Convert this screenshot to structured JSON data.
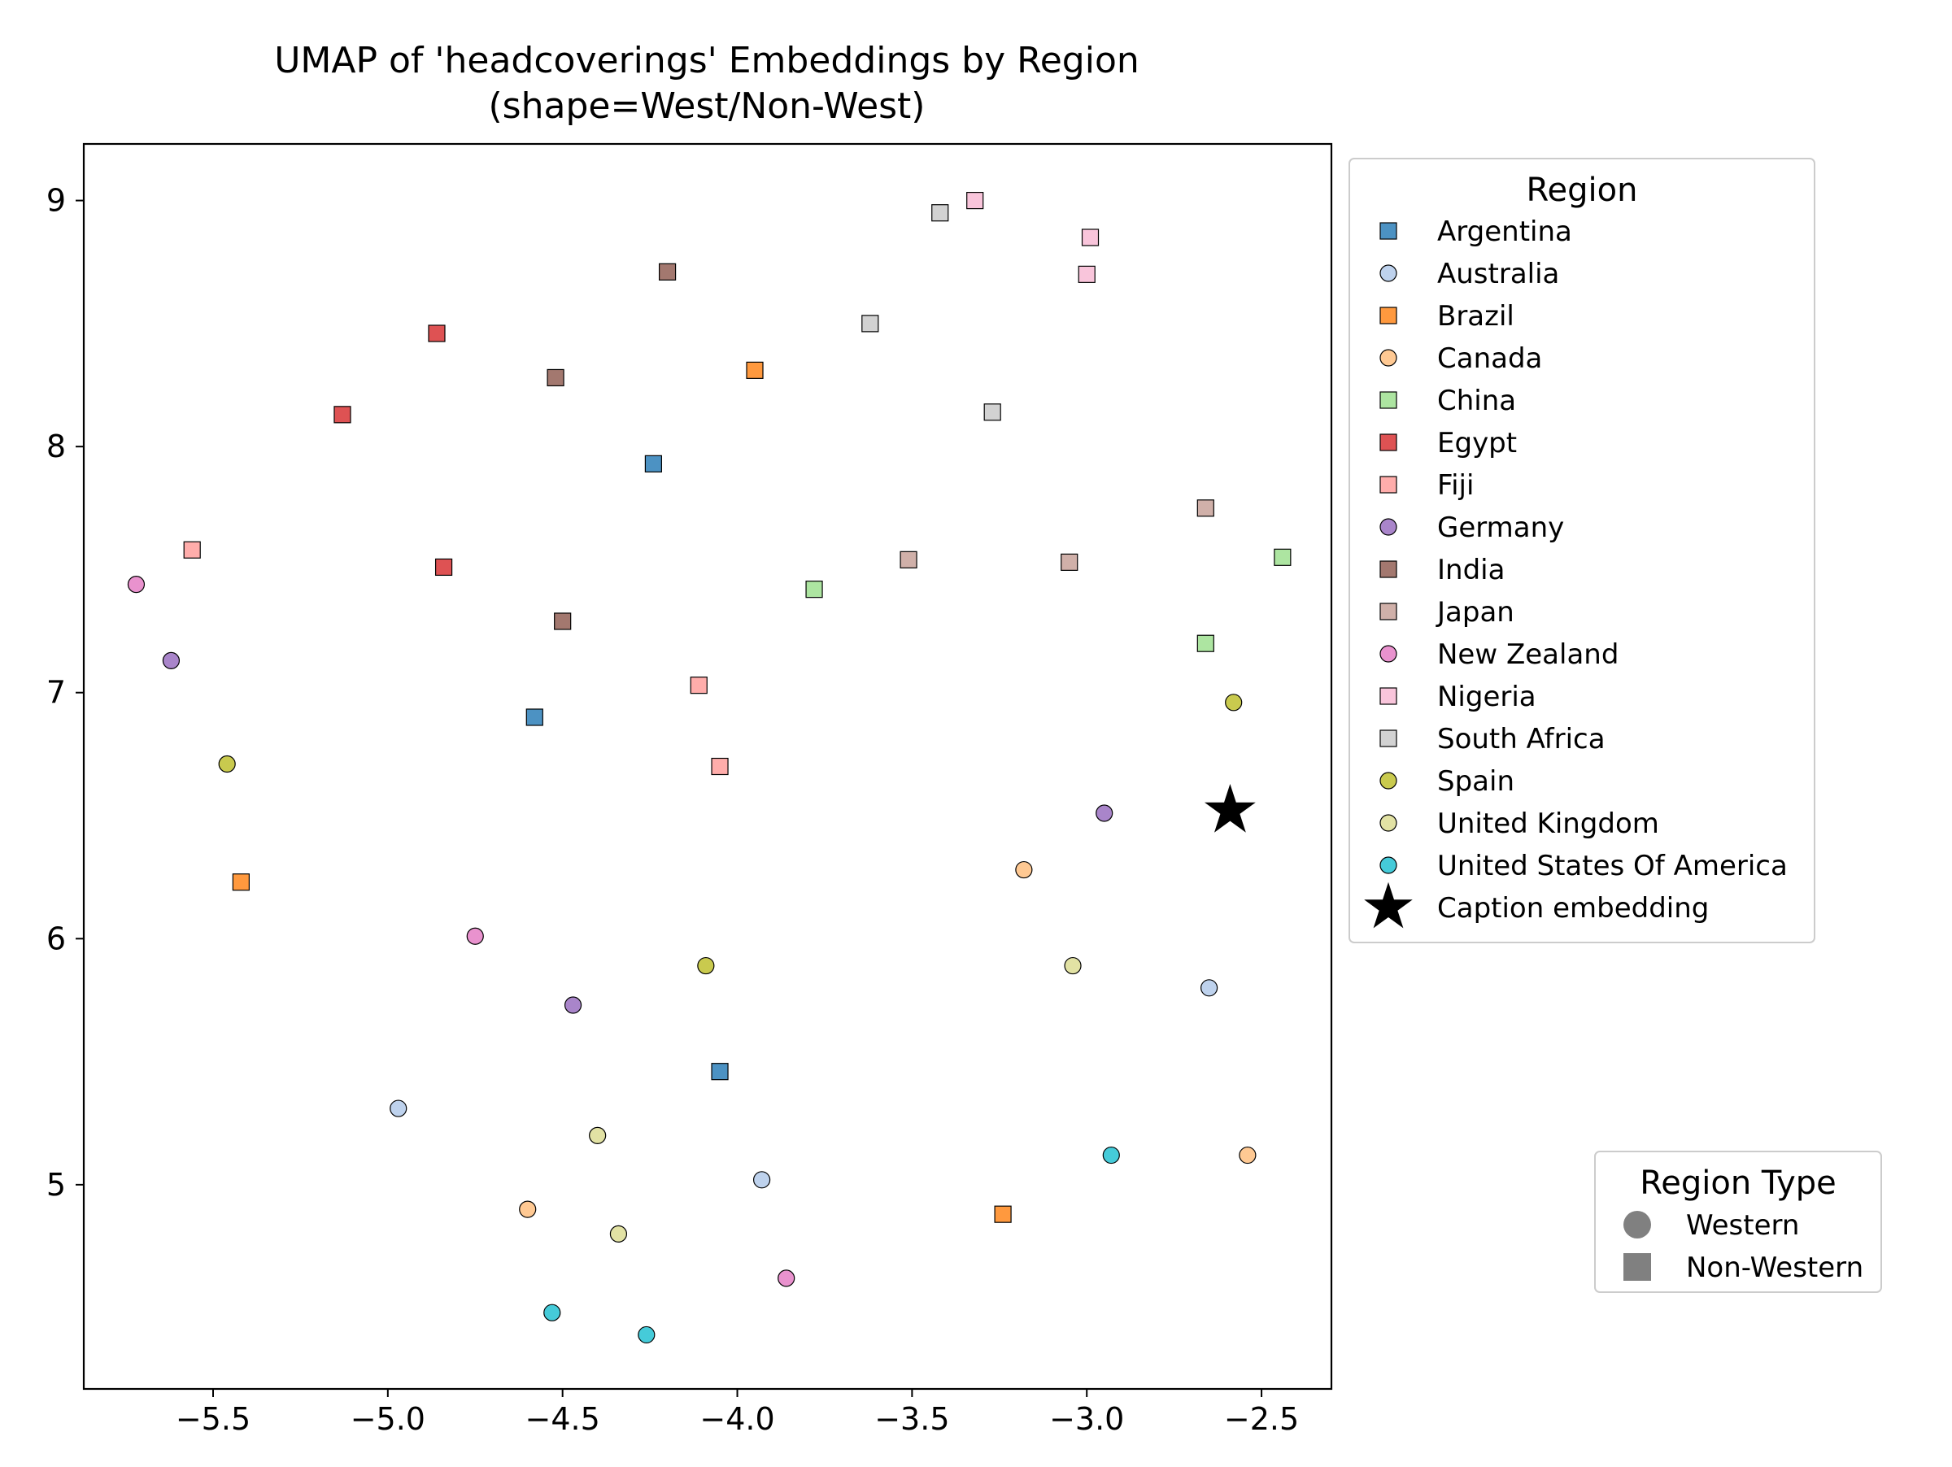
{
  "chart_data": {
    "type": "scatter",
    "title": "UMAP of 'headcoverings' Embeddings by Region",
    "subtitle": "(shape=West/Non-West)",
    "xlabel": "",
    "ylabel": "",
    "xlim": [
      -5.87,
      -2.3
    ],
    "ylim": [
      4.17,
      9.23
    ],
    "xticks": [
      -5.5,
      -5.0,
      -4.5,
      -4.0,
      -3.5,
      -3.0,
      -2.5
    ],
    "xtick_labels": [
      "−5.5",
      "−5.0",
      "−4.5",
      "−4.0",
      "−3.5",
      "−3.0",
      "−2.5"
    ],
    "yticks": [
      5,
      6,
      7,
      8,
      9
    ],
    "ytick_labels": [
      "5",
      "6",
      "7",
      "8",
      "9"
    ],
    "grid": false,
    "legend_title": "Region",
    "legend_placement": "outside-right-top",
    "region_type_legend": {
      "title": "Region Type",
      "placement": "outside-right-bottom",
      "items": [
        {
          "label": "Western",
          "shape": "circle"
        },
        {
          "label": "Non-Western",
          "shape": "square"
        }
      ]
    },
    "series": [
      {
        "name": "Argentina",
        "shape": "square",
        "color": "#1f77b4",
        "points": [
          [
            -4.24,
            7.93
          ],
          [
            -4.58,
            6.9
          ],
          [
            -4.05,
            5.46
          ]
        ]
      },
      {
        "name": "Australia",
        "shape": "circle",
        "color": "#aec7e8",
        "points": [
          [
            -4.97,
            5.31
          ],
          [
            -3.93,
            5.02
          ],
          [
            -2.65,
            5.8
          ]
        ]
      },
      {
        "name": "Brazil",
        "shape": "square",
        "color": "#ff7f0e",
        "points": [
          [
            -3.95,
            8.31
          ],
          [
            -5.42,
            6.23
          ],
          [
            -3.24,
            4.88
          ]
        ]
      },
      {
        "name": "Canada",
        "shape": "circle",
        "color": "#ffbb78",
        "points": [
          [
            -4.6,
            4.9
          ],
          [
            -3.18,
            6.28
          ],
          [
            -2.54,
            5.12
          ]
        ]
      },
      {
        "name": "China",
        "shape": "square",
        "color": "#98df8a",
        "points": [
          [
            -3.78,
            7.42
          ],
          [
            -2.44,
            7.55
          ],
          [
            -2.66,
            7.2
          ]
        ]
      },
      {
        "name": "Egypt",
        "shape": "square",
        "color": "#d62728",
        "points": [
          [
            -4.86,
            8.46
          ],
          [
            -5.13,
            8.13
          ],
          [
            -4.84,
            7.51
          ]
        ]
      },
      {
        "name": "Fiji",
        "shape": "square",
        "color": "#ff9896",
        "points": [
          [
            -5.56,
            7.58
          ],
          [
            -4.11,
            7.03
          ],
          [
            -4.05,
            6.7
          ]
        ]
      },
      {
        "name": "Germany",
        "shape": "circle",
        "color": "#9467bd",
        "points": [
          [
            -5.62,
            7.13
          ],
          [
            -4.47,
            5.73
          ],
          [
            -2.95,
            6.51
          ]
        ]
      },
      {
        "name": "India",
        "shape": "square",
        "color": "#8c564b",
        "points": [
          [
            -4.2,
            8.71
          ],
          [
            -4.52,
            8.28
          ],
          [
            -4.5,
            7.29
          ]
        ]
      },
      {
        "name": "Japan",
        "shape": "square",
        "color": "#c49c94",
        "points": [
          [
            -3.51,
            7.54
          ],
          [
            -3.05,
            7.53
          ],
          [
            -2.66,
            7.75
          ]
        ]
      },
      {
        "name": "New Zealand",
        "shape": "circle",
        "color": "#e377c2",
        "points": [
          [
            -5.72,
            7.44
          ],
          [
            -4.75,
            6.01
          ],
          [
            -3.86,
            4.62
          ]
        ]
      },
      {
        "name": "Nigeria",
        "shape": "square",
        "color": "#f7b6d2",
        "points": [
          [
            -3.32,
            9.0
          ],
          [
            -2.99,
            8.85
          ],
          [
            -3.0,
            8.7
          ]
        ]
      },
      {
        "name": "South Africa",
        "shape": "square",
        "color": "#c7c7c7",
        "points": [
          [
            -3.42,
            8.95
          ],
          [
            -3.62,
            8.5
          ],
          [
            -3.27,
            8.14
          ]
        ]
      },
      {
        "name": "Spain",
        "shape": "circle",
        "color": "#bcbd22",
        "points": [
          [
            -5.46,
            6.71
          ],
          [
            -4.09,
            5.89
          ],
          [
            -2.58,
            6.96
          ]
        ]
      },
      {
        "name": "United Kingdom",
        "shape": "circle",
        "color": "#dbdb8d",
        "points": [
          [
            -4.4,
            5.2
          ],
          [
            -4.34,
            4.8
          ],
          [
            -3.04,
            5.89
          ]
        ]
      },
      {
        "name": "United States Of America",
        "shape": "circle",
        "color": "#17becf",
        "points": [
          [
            -4.53,
            4.48
          ],
          [
            -4.26,
            4.39
          ],
          [
            -2.93,
            5.12
          ]
        ]
      },
      {
        "name": "Caption embedding",
        "shape": "star",
        "color": "#000000",
        "points": [
          [
            -2.59,
            6.52
          ]
        ]
      }
    ]
  }
}
